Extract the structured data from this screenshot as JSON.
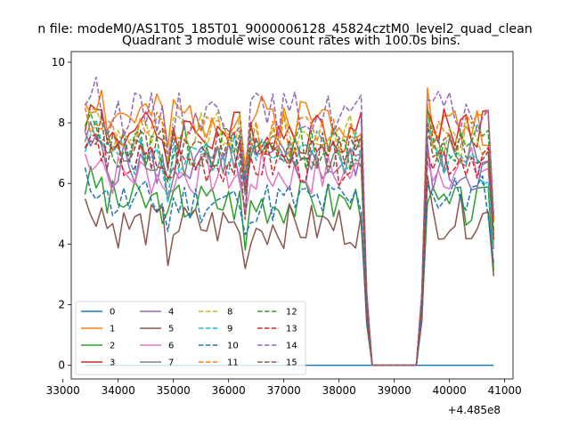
{
  "figure": {
    "suptitle": "n file: modeM0/AS1T05_185T01_9000006128_45824cztM0_level2_quad_clean",
    "title": "Quadrant 3 module wise count rates with 100.0s bins."
  },
  "chart_data": {
    "type": "line",
    "title": "Quadrant 3 module wise count rates with 100.0s bins.",
    "xlim": [
      33150,
      41150
    ],
    "ylim": [
      -0.45,
      10.35
    ],
    "x_offset_label": "+4.485e8",
    "x_ticks": [
      33000,
      34000,
      35000,
      36000,
      37000,
      38000,
      39000,
      40000,
      41000
    ],
    "x_tick_labels": [
      "33000",
      "34000",
      "35000",
      "36000",
      "37000",
      "38000",
      "39000",
      "40000",
      "41000"
    ],
    "y_ticks": [
      0,
      2,
      4,
      6,
      8,
      10
    ],
    "y_tick_labels": [
      "0",
      "2",
      "4",
      "6",
      "8",
      "10"
    ],
    "legend": {
      "placement": "lower-left",
      "columns": 4
    },
    "series": [
      {
        "name": "0",
        "color": "#1f77b4",
        "dash": "solid",
        "level_a": 0.0,
        "level_b": 0.0,
        "seed": 1
      },
      {
        "name": "1",
        "color": "#ff7f0e",
        "dash": "solid",
        "level_a": 8.2,
        "level_b": 7.9,
        "seed": 2
      },
      {
        "name": "2",
        "color": "#2ca02c",
        "dash": "solid",
        "level_a": 5.4,
        "level_b": 5.2,
        "seed": 3
      },
      {
        "name": "3",
        "color": "#d62728",
        "dash": "solid",
        "level_a": 7.7,
        "level_b": 7.9,
        "seed": 4
      },
      {
        "name": "4",
        "color": "#9467bd",
        "dash": "solid",
        "level_a": 6.6,
        "level_b": 6.4,
        "seed": 5
      },
      {
        "name": "5",
        "color": "#8c564b",
        "dash": "solid",
        "level_a": 4.6,
        "level_b": 4.9,
        "seed": 6
      },
      {
        "name": "6",
        "color": "#e377c2",
        "dash": "solid",
        "level_a": 6.3,
        "level_b": 6.5,
        "seed": 7
      },
      {
        "name": "7",
        "color": "#7f7f7f",
        "dash": "solid",
        "level_a": 6.9,
        "level_b": 6.9,
        "seed": 8
      },
      {
        "name": "8",
        "color": "#bcbd22",
        "dash": "dashed",
        "level_a": 7.6,
        "level_b": 7.4,
        "seed": 9
      },
      {
        "name": "9",
        "color": "#17becf",
        "dash": "dashed",
        "level_a": 7.0,
        "level_b": 6.6,
        "seed": 10
      },
      {
        "name": "10",
        "color": "#1f77b4",
        "dash": "dashed",
        "level_a": 5.4,
        "level_b": 5.6,
        "seed": 11
      },
      {
        "name": "11",
        "color": "#ff7f0e",
        "dash": "dashed",
        "level_a": 7.6,
        "level_b": 7.8,
        "seed": 12
      },
      {
        "name": "12",
        "color": "#2ca02c",
        "dash": "dashed",
        "level_a": 7.2,
        "level_b": 7.3,
        "seed": 13
      },
      {
        "name": "13",
        "color": "#d62728",
        "dash": "dashed",
        "level_a": 6.7,
        "level_b": 6.9,
        "seed": 14
      },
      {
        "name": "14",
        "color": "#9467bd",
        "dash": "dashed",
        "level_a": 8.3,
        "level_b": 8.3,
        "seed": 15
      },
      {
        "name": "15",
        "color": "#8c564b",
        "dash": "dashed",
        "level_a": 7.1,
        "level_b": 7.1,
        "seed": 16
      }
    ]
  }
}
